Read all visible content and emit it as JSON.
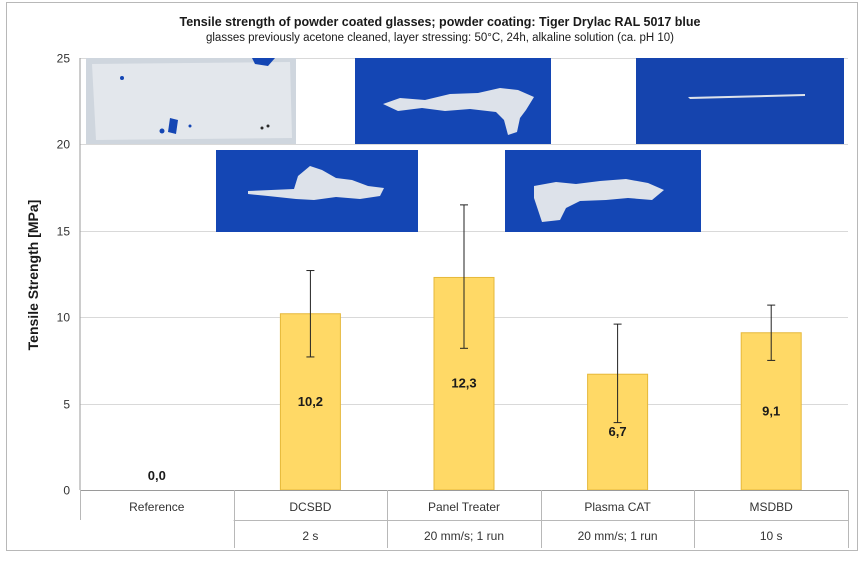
{
  "chart_data": {
    "type": "bar",
    "title": "Tensile strength of powder coated glasses; powder coating: Tiger Drylac RAL 5017 blue",
    "subtitle": "glasses previously  acetone cleaned, layer stressing: 50°C, 24h, alkaline solution (ca. pH 10)",
    "ylabel": "Tensile Strength [MPa]",
    "ylim": [
      0,
      25
    ],
    "yticks": [
      "0",
      "5",
      "10",
      "15",
      "20",
      "25"
    ],
    "grid": true,
    "categories": [
      "Reference",
      "DCSBD",
      "Panel Treater",
      "Plasma CAT",
      "MSDBD"
    ],
    "sublabels": [
      "",
      "2 s",
      "20 mm/s; 1 run",
      "20 mm/s; 1 run",
      "10 s"
    ],
    "values": [
      0.0,
      10.2,
      12.3,
      6.7,
      9.1
    ],
    "value_labels": [
      "0,0",
      "10,2",
      "12,3",
      "6,7",
      "9,1"
    ],
    "error_low": [
      null,
      7.7,
      8.2,
      3.9,
      7.5
    ],
    "error_high": [
      null,
      12.7,
      16.5,
      9.6,
      10.7
    ],
    "bar_color": "#ffd966",
    "bar_edge_color": "#e6b83a",
    "photo_blue": "#1446b4",
    "photo_white": "#dde2ea"
  }
}
